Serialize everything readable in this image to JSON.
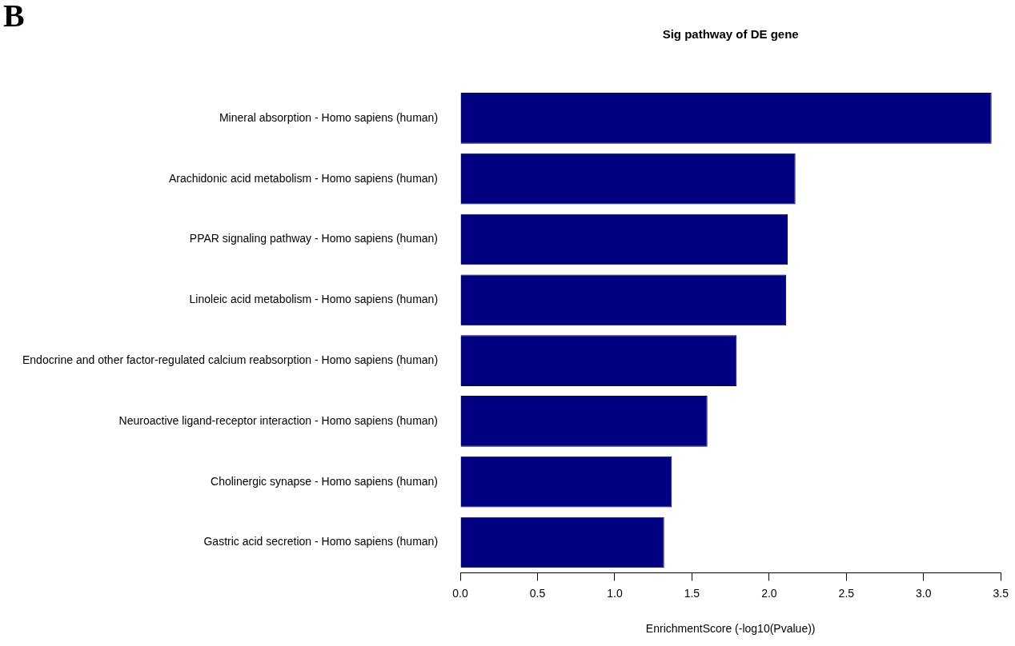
{
  "chart_data": {
    "type": "bar",
    "orientation": "horizontal",
    "title": "Sig pathway of DE gene",
    "xlabel": "EnrichmentScore (-log10(Pvalue))",
    "annotations": [
      "B"
    ],
    "categories": [
      "Mineral absorption - Homo sapiens (human)",
      "Arachidonic acid metabolism - Homo sapiens (human)",
      "PPAR signaling pathway - Homo sapiens (human)",
      "Linoleic acid metabolism - Homo sapiens (human)",
      "Endocrine and other factor-regulated calcium reabsorption - Homo sapiens (human)",
      "Neuroactive ligand-receptor interaction - Homo sapiens (human)",
      "Cholinergic synapse - Homo sapiens (human)",
      "Gastric acid secretion - Homo sapiens (human)"
    ],
    "values": [
      3.44,
      2.17,
      2.12,
      2.11,
      1.79,
      1.6,
      1.37,
      1.32
    ],
    "color": "#000080",
    "xlim": [
      0,
      3.5
    ],
    "xticks": [
      {
        "value": 0,
        "label": "0.0"
      },
      {
        "value": 0.5,
        "label": "0.5"
      },
      {
        "value": 1,
        "label": "1.0"
      },
      {
        "value": 1.5,
        "label": "1.5"
      },
      {
        "value": 2,
        "label": "2.0"
      },
      {
        "value": 2.5,
        "label": "2.5"
      },
      {
        "value": 3,
        "label": "3.0"
      },
      {
        "value": 3.5,
        "label": "3.5"
      }
    ],
    "grid": false,
    "legend": false
  }
}
